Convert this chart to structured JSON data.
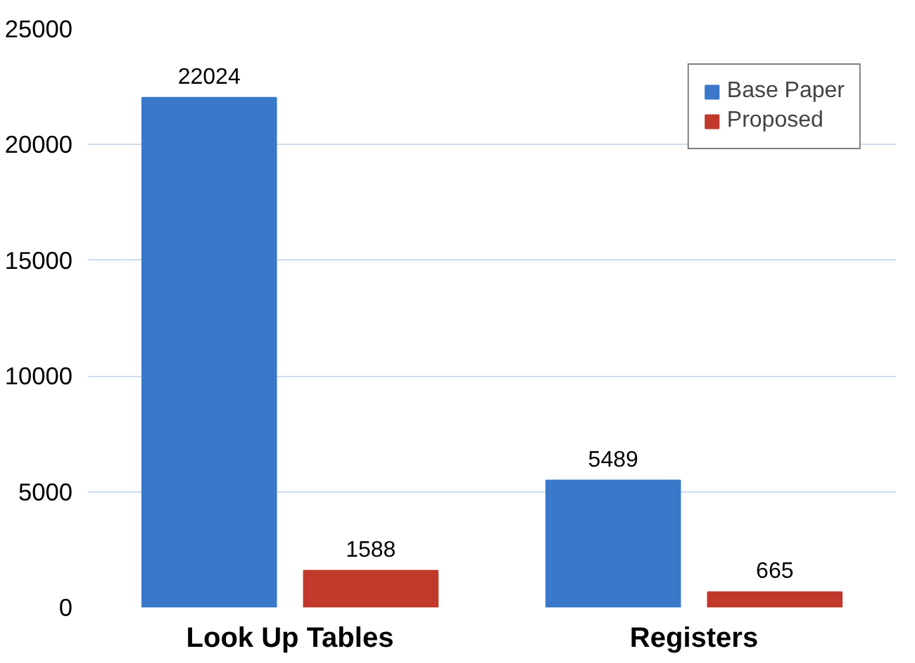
{
  "chart_data": {
    "type": "bar",
    "categories": [
      "Look Up Tables",
      "Registers"
    ],
    "series": [
      {
        "name": "Base Paper",
        "color": "#3a78c9",
        "values": [
          22024,
          5489
        ]
      },
      {
        "name": "Proposed",
        "color": "#c0392b",
        "values": [
          1588,
          665
        ]
      }
    ],
    "ylim": [
      0,
      25000
    ],
    "yticks": [
      0,
      5000,
      10000,
      15000,
      20000,
      25000
    ],
    "grid": "y",
    "legend": "top right",
    "data_labels": true
  }
}
